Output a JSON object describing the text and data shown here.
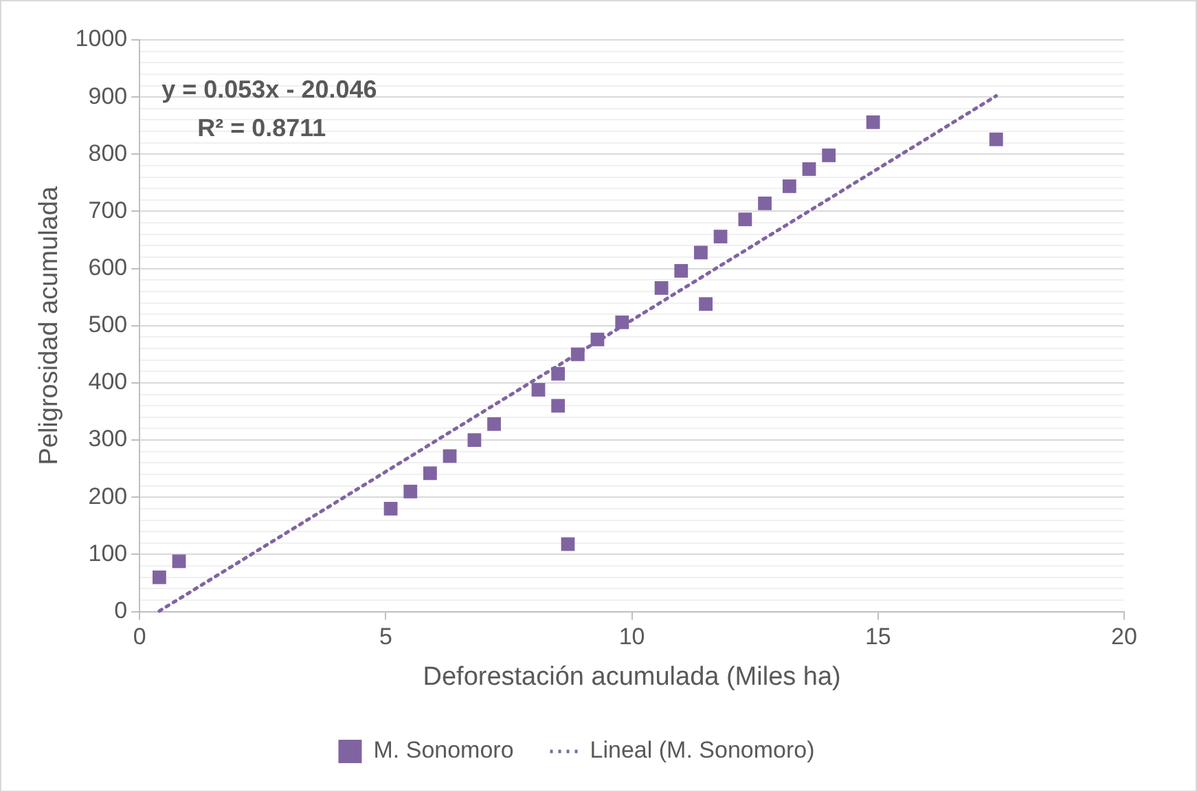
{
  "chart_data": {
    "type": "scatter",
    "xlabel": "Deforestación acumulada (Miles ha)",
    "ylabel": "Peligrosidad acumulada",
    "xlim": [
      0,
      20
    ],
    "xticks": [
      0,
      5,
      10,
      15,
      20
    ],
    "ylim": [
      0,
      1000
    ],
    "yticks": [
      0,
      {
        "value": 20,
        "label": null
      },
      {
        "value": 40,
        "label": null
      },
      {
        "value": 60,
        "label": null
      },
      {
        "value": 80,
        "label": null
      },
      100,
      {
        "value": 120,
        "label": null
      },
      {
        "value": 140,
        "label": null
      },
      {
        "value": 160,
        "label": null
      },
      {
        "value": 180,
        "label": null
      },
      200,
      {
        "value": 220,
        "label": null
      },
      {
        "value": 240,
        "label": null
      },
      {
        "value": 260,
        "label": null
      },
      {
        "value": 280,
        "label": null
      },
      300,
      {
        "value": 320,
        "label": null
      },
      {
        "value": 340,
        "label": null
      },
      {
        "value": 360,
        "label": null
      },
      {
        "value": 380,
        "label": null
      },
      400,
      {
        "value": 420,
        "label": null
      },
      {
        "value": 440,
        "label": null
      },
      {
        "value": 460,
        "label": null
      },
      {
        "value": 480,
        "label": null
      },
      500,
      {
        "value": 520,
        "label": null
      },
      {
        "value": 540,
        "label": null
      },
      {
        "value": 560,
        "label": null
      },
      {
        "value": 580,
        "label": null
      },
      600,
      {
        "value": 620,
        "label": null
      },
      {
        "value": 640,
        "label": null
      },
      {
        "value": 660,
        "label": null
      },
      {
        "value": 680,
        "label": null
      },
      700,
      {
        "value": 720,
        "label": null
      },
      {
        "value": 740,
        "label": null
      },
      {
        "value": 760,
        "label": null
      },
      {
        "value": 780,
        "label": null
      },
      800,
      {
        "value": 820,
        "label": null
      },
      {
        "value": 840,
        "label": null
      },
      {
        "value": 860,
        "label": null
      },
      {
        "value": 880,
        "label": null
      },
      900,
      {
        "value": 920,
        "label": null
      },
      {
        "value": 940,
        "label": null
      },
      {
        "value": 960,
        "label": null
      },
      {
        "value": 980,
        "label": null
      },
      1000
    ],
    "grid": "y",
    "legend": "bottom",
    "marker": "square",
    "annotations": [
      "y = 0.053x - 20.046",
      "R² = 0.8711"
    ],
    "series": [
      {
        "name": "M. Sonomoro",
        "color": "#8064a2",
        "x": [
          0.4,
          0.8,
          5.1,
          5.5,
          5.9,
          6.3,
          6.8,
          7.2,
          8.1,
          8.5,
          8.5,
          8.7,
          8.9,
          9.3,
          9.8,
          10.6,
          11.0,
          11.4,
          11.5,
          11.8,
          12.3,
          12.7,
          13.2,
          13.6,
          14.0,
          14.9,
          17.4
        ],
        "values": [
          60,
          88,
          180,
          210,
          242,
          272,
          300,
          328,
          388,
          360,
          416,
          118,
          450,
          476,
          506,
          566,
          596,
          628,
          538,
          656,
          686,
          714,
          744,
          774,
          798,
          856,
          826
        ]
      },
      {
        "name": "Lineal (M. Sonomoro)",
        "type": "line",
        "color": "#8064a2",
        "marker": "none",
        "line_style": "dotted",
        "x": [
          0.4,
          17.4
        ],
        "values": [
          1,
          902
        ]
      }
    ]
  }
}
